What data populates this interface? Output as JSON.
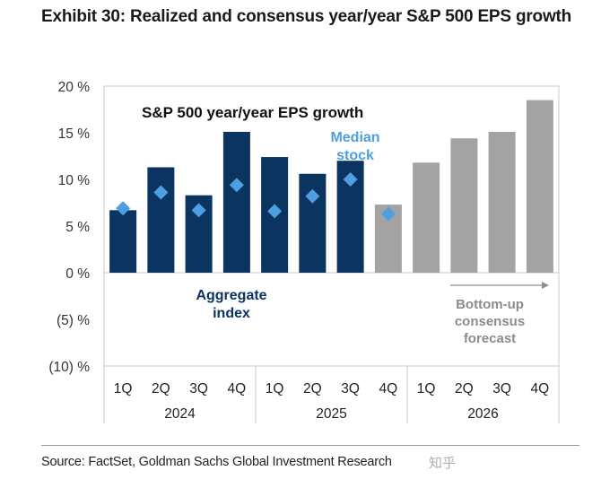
{
  "exhibit": {
    "title": "Exhibit 30: Realized and consensus year/year S&P 500 EPS growth",
    "source": "Source: FactSet, Goldman Sachs Global Investment Research",
    "watermark": "知乎"
  },
  "chart_data": {
    "type": "bar",
    "title": "S&P 500 year/year EPS growth",
    "xlabel": "",
    "ylabel": "",
    "ylim": [
      -10,
      20
    ],
    "yticks": [
      20,
      15,
      10,
      5,
      0,
      -5,
      -10
    ],
    "ytick_labels": [
      "20 %",
      "15 %",
      "10 %",
      "5 %",
      "0 %",
      "(5) %",
      "(10) %"
    ],
    "grid": false,
    "categories": [
      "1Q",
      "2Q",
      "3Q",
      "4Q",
      "1Q",
      "2Q",
      "3Q",
      "4Q",
      "1Q",
      "2Q",
      "3Q",
      "4Q"
    ],
    "year_groups": [
      {
        "label": "2024",
        "count": 4
      },
      {
        "label": "2025",
        "count": 4
      },
      {
        "label": "2026",
        "count": 4
      }
    ],
    "series": [
      {
        "name": "Aggregate index",
        "kind": "bar",
        "values": [
          6.7,
          11.3,
          8.3,
          15.1,
          12.4,
          10.6,
          12.0,
          null,
          null,
          null,
          null,
          null
        ],
        "color": "#0b3461"
      },
      {
        "name": "Bottom-up consensus forecast",
        "kind": "bar",
        "values": [
          null,
          null,
          null,
          null,
          null,
          null,
          null,
          7.3,
          11.8,
          14.4,
          15.1,
          18.5
        ],
        "color": "#a3a3a3"
      },
      {
        "name": "Median stock",
        "kind": "marker",
        "marker": "diamond",
        "values": [
          6.9,
          8.6,
          6.7,
          9.4,
          6.6,
          8.2,
          10.0,
          6.3,
          null,
          null,
          null,
          null
        ],
        "color": "#4e9fe0"
      }
    ],
    "annotations": [
      {
        "id": "aggregate",
        "lines": [
          "Aggregate",
          "index"
        ],
        "color": "#0b3461"
      },
      {
        "id": "median",
        "lines": [
          "Median",
          "stock"
        ],
        "color": "#4e9fe0"
      },
      {
        "id": "forecast",
        "lines": [
          "Bottom-up",
          "consensus",
          "forecast"
        ],
        "color": "#8c8c8c",
        "arrow": "right"
      }
    ]
  }
}
